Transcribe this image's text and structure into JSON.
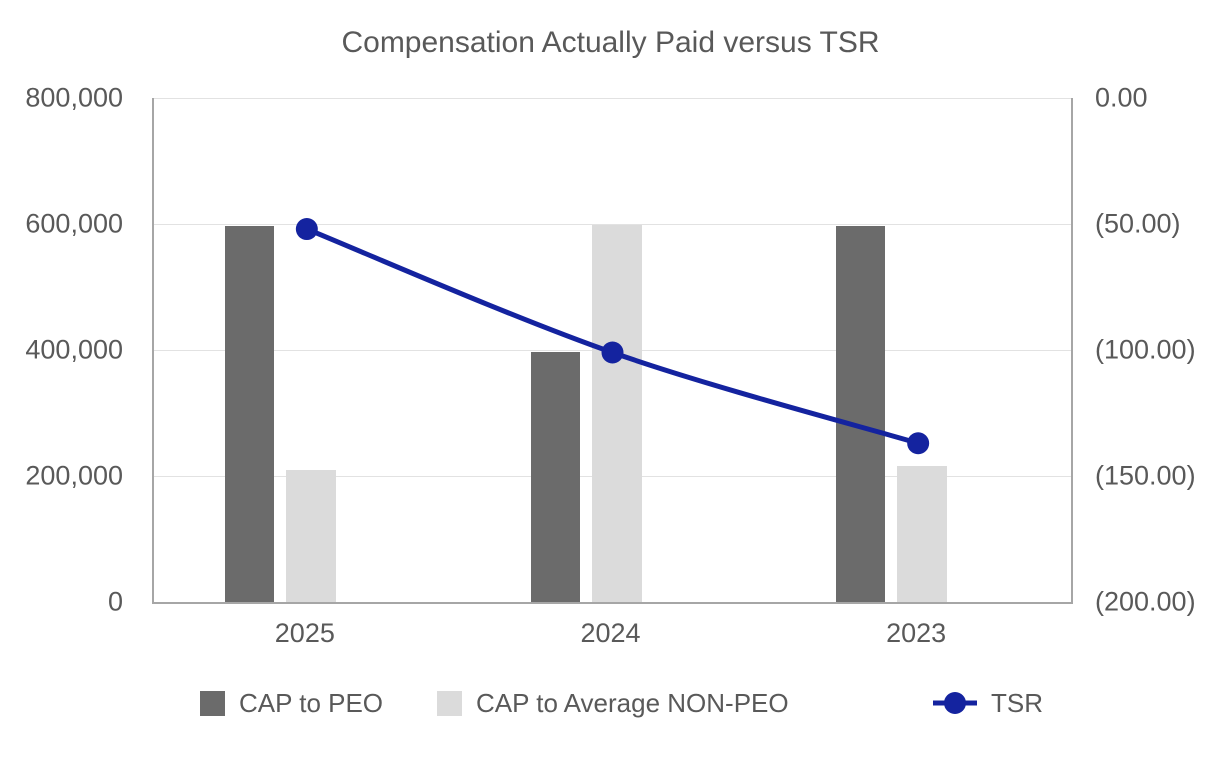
{
  "chart_data": {
    "type": "bar",
    "subtype": "clustered-bar-with-line-combo",
    "title": "Compensation Actually Paid versus TSR",
    "categories": [
      "2025",
      "2024",
      "2023"
    ],
    "bar_series": [
      {
        "name": "CAP to PEO",
        "color": "#6b6b6b",
        "axis": "left",
        "values": [
          597000,
          397000,
          597000
        ]
      },
      {
        "name": "CAP to Average NON-PEO",
        "color": "#dbdbdb",
        "axis": "left",
        "values": [
          209000,
          598000,
          216000
        ]
      }
    ],
    "line_series": [
      {
        "name": "TSR",
        "color": "#14239f",
        "axis": "right",
        "values": [
          -52,
          -101,
          -137
        ],
        "marker": "circle",
        "smooth": true
      }
    ],
    "left_axis": {
      "min": 0,
      "max": 800000,
      "tick_labels_top_to_bottom": [
        "800,000",
        "600,000",
        "400,000",
        "200,000",
        "0"
      ]
    },
    "right_axis": {
      "min": -200,
      "max": 0,
      "tick_labels_top_to_bottom": [
        "0.00",
        "(50.00)",
        "(100.00)",
        "(150.00)",
        "(200.00)"
      ]
    },
    "grid": "horizontal-on",
    "legend_position": "bottom",
    "colors": {
      "text": "#595959",
      "gridline": "#e2e2e2",
      "axis_border": "#a6a6a6",
      "background": "#ffffff"
    }
  }
}
